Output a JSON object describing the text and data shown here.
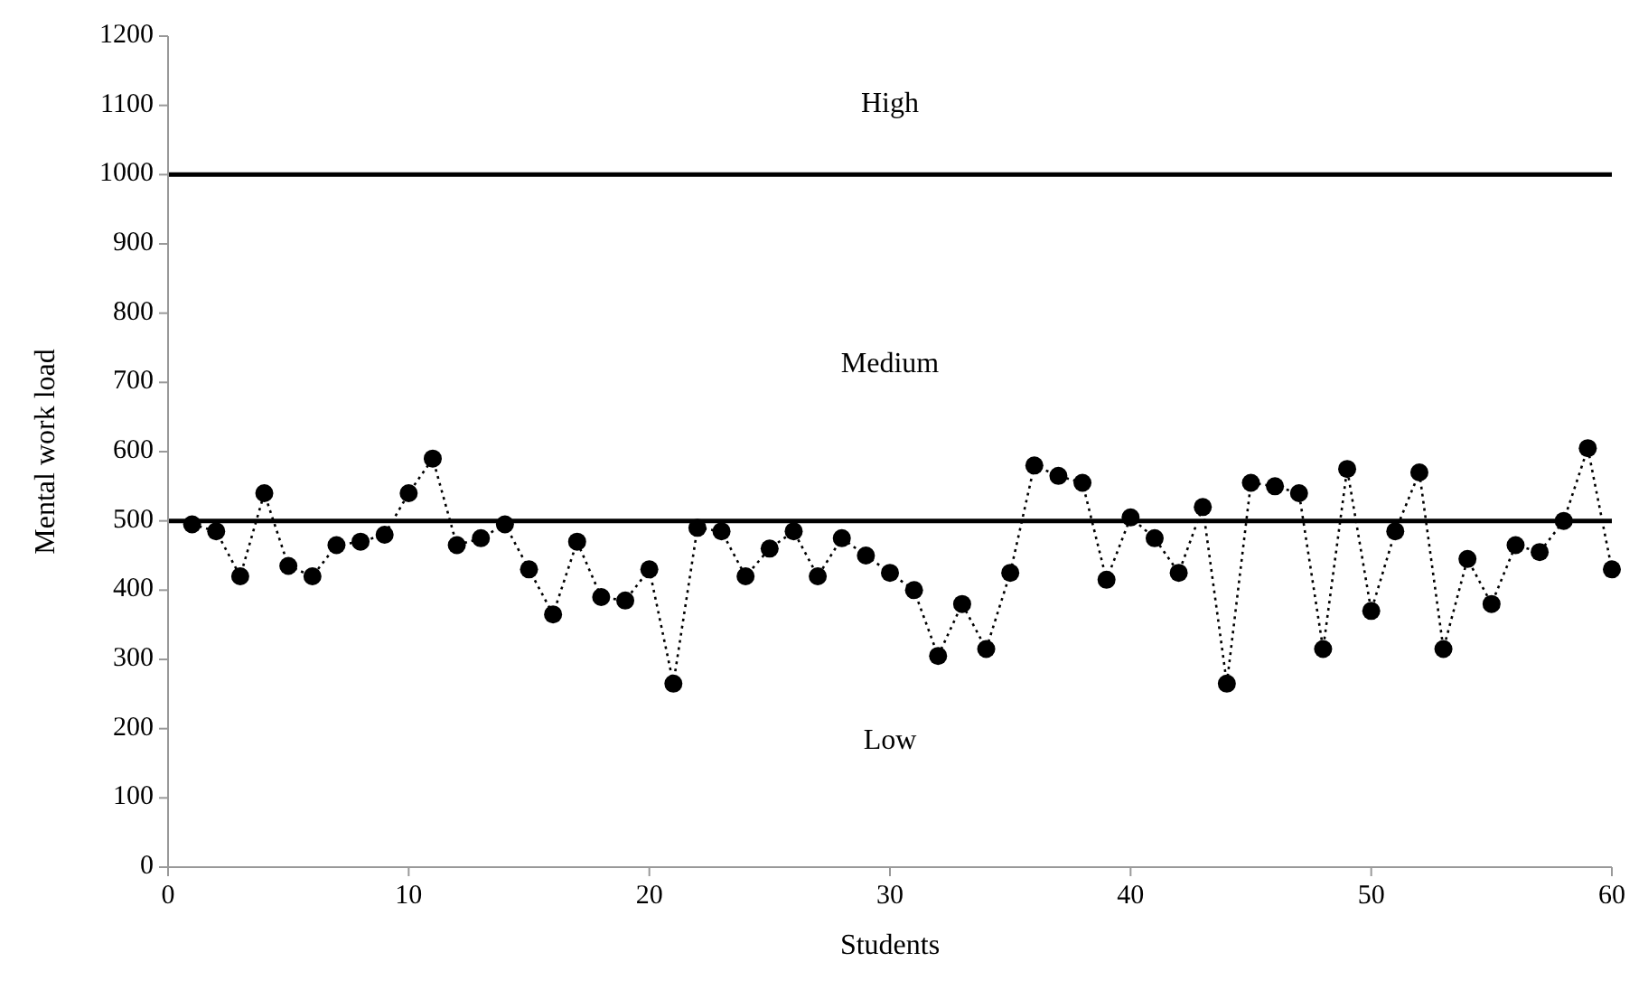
{
  "chart_data": {
    "type": "line",
    "xlabel": "Students",
    "ylabel": "Mental work load",
    "x": [
      1,
      2,
      3,
      4,
      5,
      6,
      7,
      8,
      9,
      10,
      11,
      12,
      13,
      14,
      15,
      16,
      17,
      18,
      19,
      20,
      21,
      22,
      23,
      24,
      25,
      26,
      27,
      28,
      29,
      30,
      31,
      32,
      33,
      34,
      35,
      36,
      37,
      38,
      39,
      40,
      41,
      42,
      43,
      44,
      45,
      46,
      47,
      48,
      49,
      50,
      51,
      52,
      53,
      54,
      55,
      56,
      57,
      58,
      59,
      60
    ],
    "series": [
      {
        "color": "#000000",
        "values": [
          495,
          485,
          420,
          540,
          435,
          420,
          465,
          470,
          480,
          540,
          590,
          465,
          475,
          495,
          430,
          365,
          470,
          390,
          385,
          430,
          265,
          490,
          485,
          420,
          460,
          485,
          420,
          475,
          450,
          425,
          400,
          305,
          380,
          315,
          425,
          580,
          565,
          555,
          415,
          505,
          475,
          425,
          520,
          265,
          555,
          550,
          540,
          315,
          575,
          370,
          485,
          570,
          315,
          445,
          380,
          465,
          455,
          500,
          605,
          430
        ]
      }
    ],
    "xlim": [
      0,
      60
    ],
    "xticks": [
      0,
      10,
      20,
      30,
      40,
      50,
      60
    ],
    "ylim": [
      0,
      1200
    ],
    "yticks": [
      0,
      100,
      200,
      300,
      400,
      500,
      600,
      700,
      800,
      900,
      1000,
      1100,
      1200
    ],
    "ref_lines": [
      {
        "axis": "y",
        "value": 1000,
        "color": "#000000"
      },
      {
        "axis": "y",
        "value": 500,
        "color": "#000000"
      }
    ],
    "annotations": [
      "High",
      "Medium",
      "Low"
    ],
    "marker": "circle",
    "line_style": "dotted",
    "grid": false
  }
}
